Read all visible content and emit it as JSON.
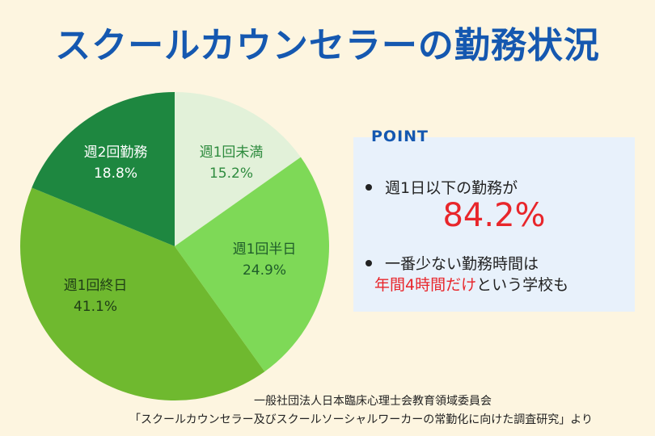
{
  "title": "スクールカウンセラーの勤務状況",
  "chart_data": {
    "type": "pie",
    "categories": [
      "週1回未満",
      "週1回半日",
      "週1回終日",
      "週2回勤務"
    ],
    "values": [
      15.2,
      24.9,
      41.1,
      18.8
    ],
    "value_labels": [
      "15.2%",
      "24.9%",
      "41.1%",
      "18.8%"
    ],
    "colors": [
      "#e2f1d9",
      "#7ed957",
      "#6fb92f",
      "#1e8740"
    ],
    "label_colors": [
      "#2e8b3e",
      "#1f5d2a",
      "#1f3d16",
      "#ffffff"
    ],
    "start_angle": "12 o'clock",
    "direction": "clockwise"
  },
  "point_box": {
    "heading": "POINT",
    "bullet1": "週1日以下の勤務が",
    "highlight_number": "84.2%",
    "bullet2": "一番少ない勤務時間は",
    "line2_red": "年間4時間だけ",
    "line2_rest": "という学校も"
  },
  "source": {
    "line1": "一般社団法人日本臨床心理士会教育領域委員会",
    "line2": "「スクールカウンセラー及びスクールソーシャルワーカーの常勤化に向けた調査研究」より"
  }
}
